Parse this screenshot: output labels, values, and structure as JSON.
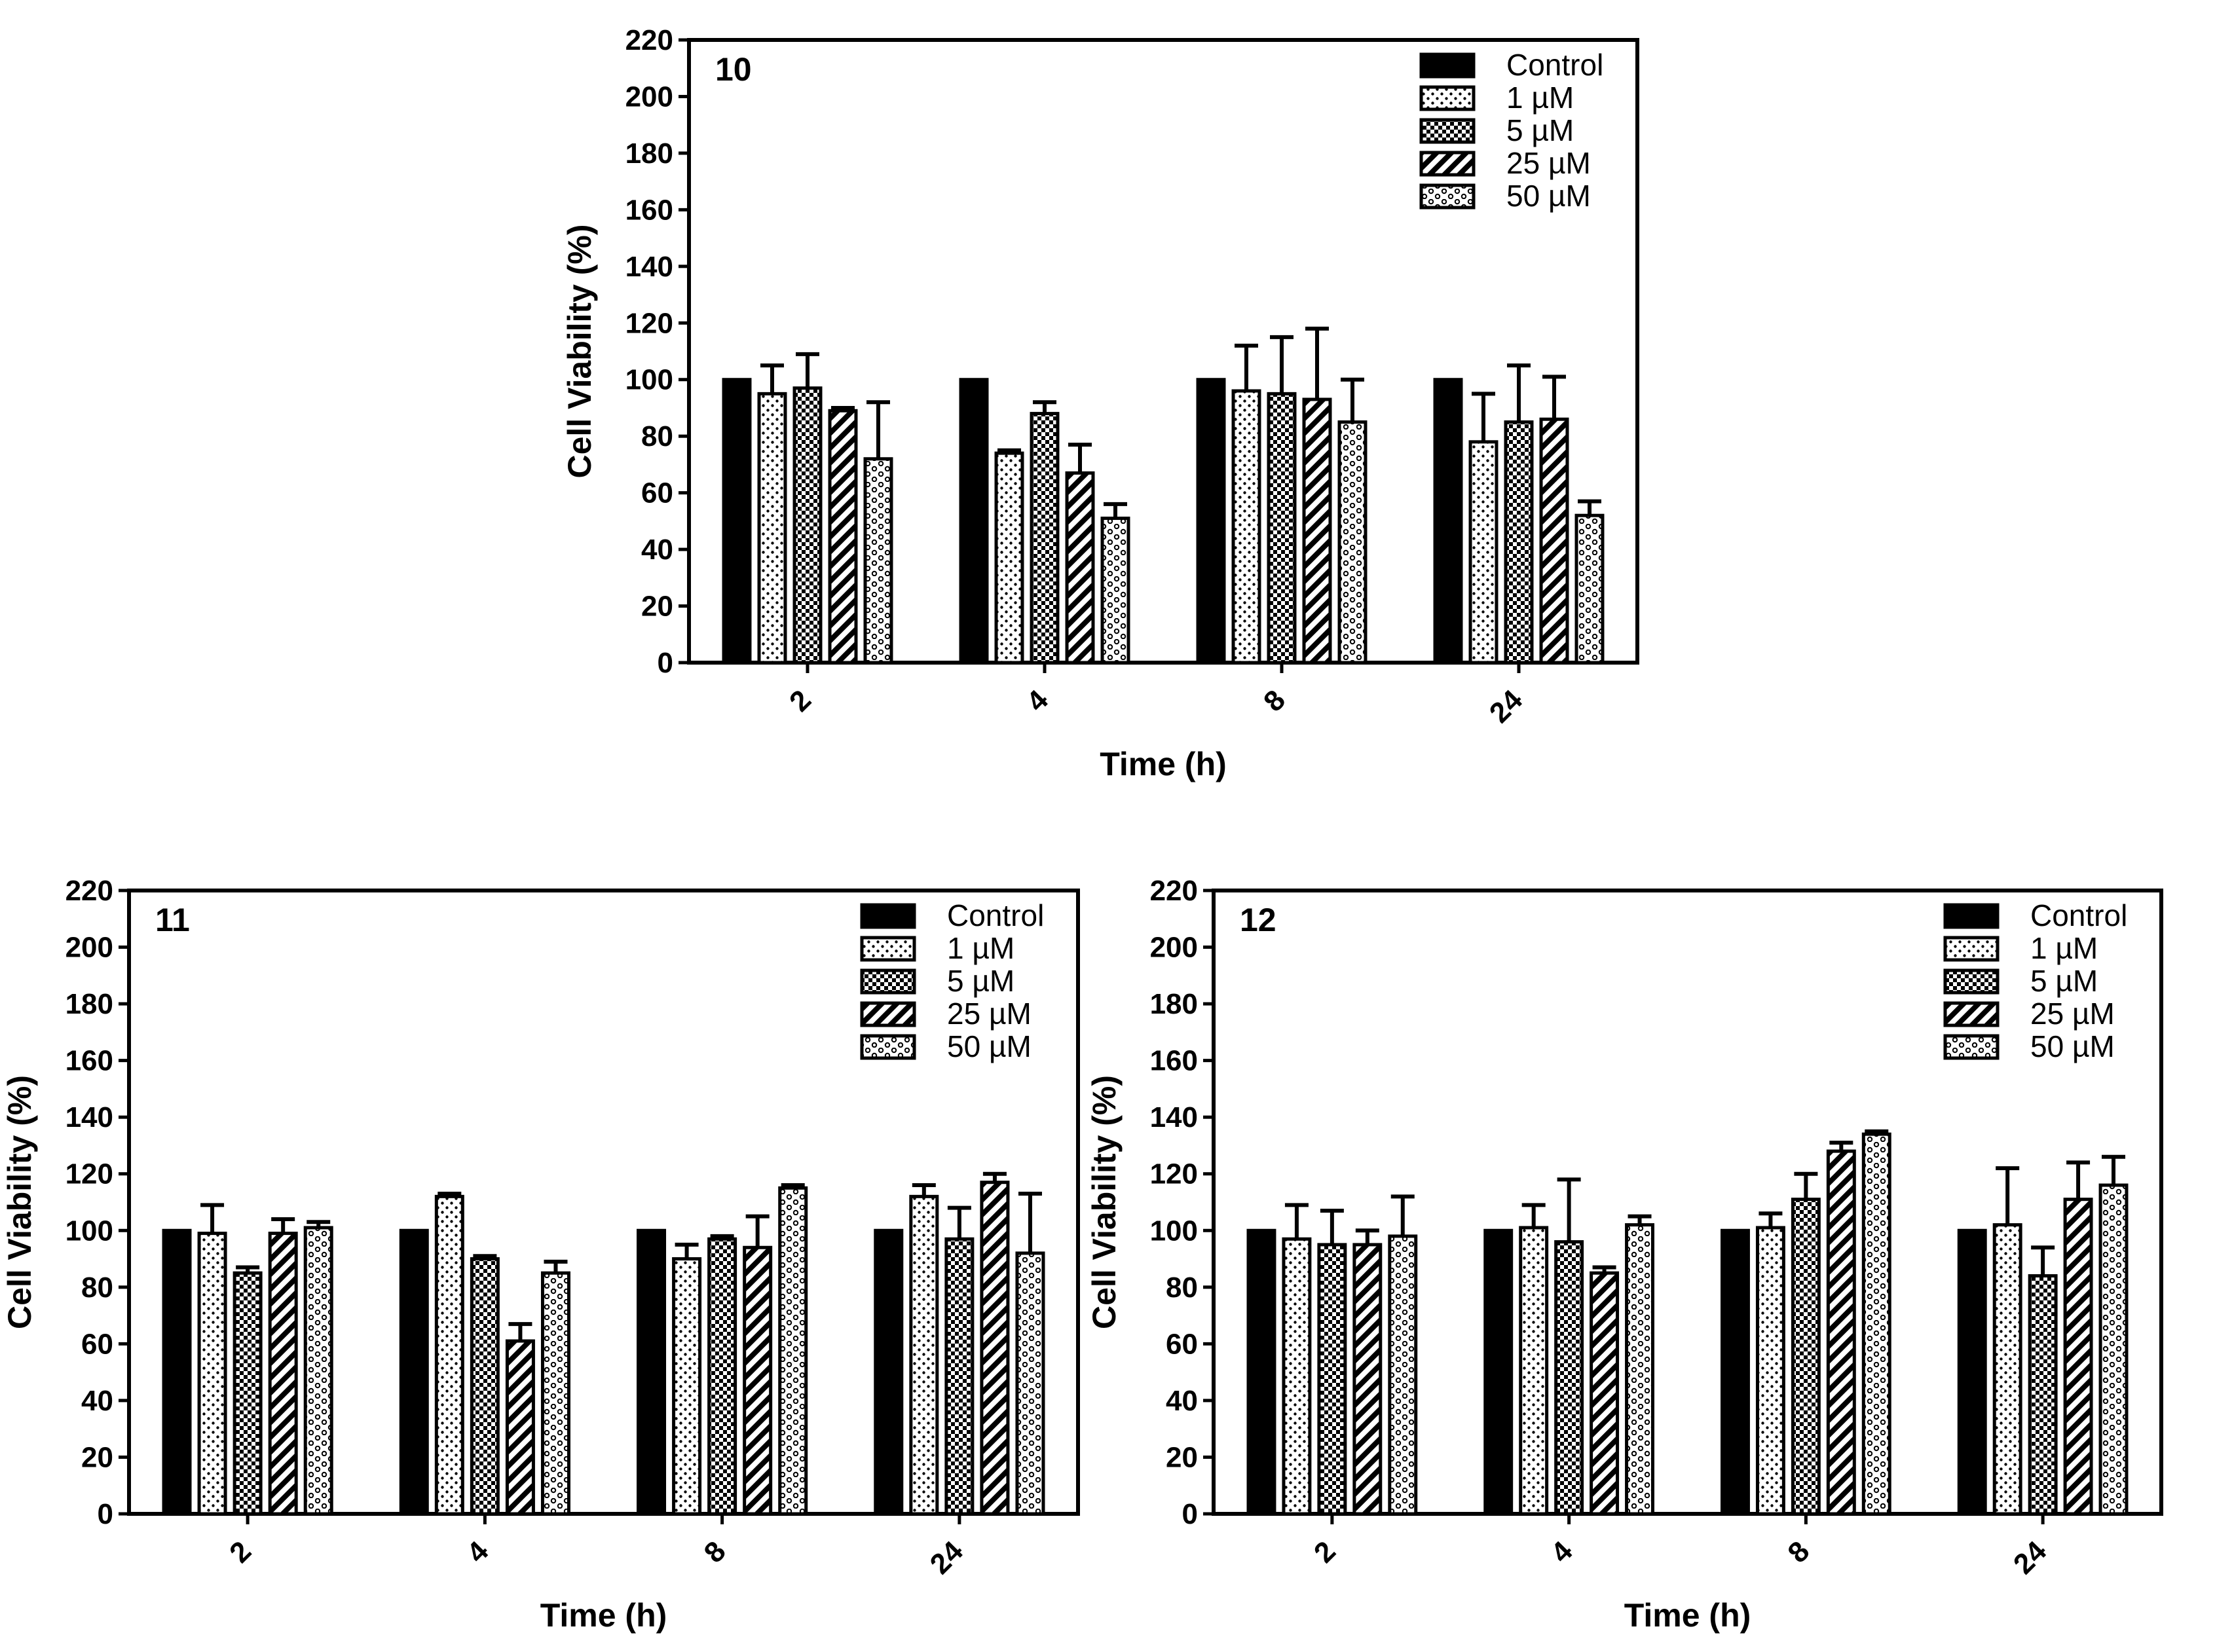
{
  "chart_data": [
    {
      "type": "bar",
      "panel_label": "10",
      "xlabel": "Time (h)",
      "ylabel": "Cell Viability (%)",
      "ylim": [
        0,
        220
      ],
      "yticks": [
        0,
        20,
        40,
        60,
        80,
        100,
        120,
        140,
        160,
        180,
        200,
        220
      ],
      "categories": [
        "2",
        "4",
        "8",
        "24"
      ],
      "legend_position": "top-right",
      "grid": false,
      "series": [
        {
          "name": "Control",
          "pattern": "solid",
          "values": [
            100,
            100,
            100,
            100
          ],
          "errors": [
            0,
            0,
            0,
            0
          ]
        },
        {
          "name": "1 µM",
          "pattern": "dots",
          "values": [
            95,
            74,
            96,
            78
          ],
          "errors": [
            10,
            1,
            16,
            17
          ]
        },
        {
          "name": "5 µM",
          "pattern": "checker",
          "values": [
            97,
            88,
            95,
            85
          ],
          "errors": [
            12,
            4,
            20,
            20
          ]
        },
        {
          "name": "25 µM",
          "pattern": "stripes",
          "values": [
            89,
            67,
            93,
            86
          ],
          "errors": [
            1,
            10,
            25,
            15
          ]
        },
        {
          "name": "50 µM",
          "pattern": "waves",
          "values": [
            72,
            51,
            85,
            52
          ],
          "errors": [
            20,
            5,
            15,
            5
          ]
        }
      ]
    },
    {
      "type": "bar",
      "panel_label": "11",
      "xlabel": "Time (h)",
      "ylabel": "Cell Viability (%)",
      "ylim": [
        0,
        220
      ],
      "yticks": [
        0,
        20,
        40,
        60,
        80,
        100,
        120,
        140,
        160,
        180,
        200,
        220
      ],
      "categories": [
        "2",
        "4",
        "8",
        "24"
      ],
      "legend_position": "top-right",
      "grid": false,
      "series": [
        {
          "name": "Control",
          "pattern": "solid",
          "values": [
            100,
            100,
            100,
            100
          ],
          "errors": [
            0,
            0,
            0,
            0
          ]
        },
        {
          "name": "1 µM",
          "pattern": "dots",
          "values": [
            99,
            112,
            90,
            112
          ],
          "errors": [
            10,
            1,
            5,
            4
          ]
        },
        {
          "name": "5 µM",
          "pattern": "checker",
          "values": [
            85,
            90,
            97,
            97
          ],
          "errors": [
            2,
            1,
            1,
            11
          ]
        },
        {
          "name": "25 µM",
          "pattern": "stripes",
          "values": [
            99,
            61,
            94,
            117
          ],
          "errors": [
            5,
            6,
            11,
            3
          ]
        },
        {
          "name": "50 µM",
          "pattern": "waves",
          "values": [
            101,
            85,
            115,
            92
          ],
          "errors": [
            2,
            4,
            1,
            21
          ]
        }
      ]
    },
    {
      "type": "bar",
      "panel_label": "12",
      "xlabel": "Time (h)",
      "ylabel": "Cell Viability (%)",
      "ylim": [
        0,
        220
      ],
      "yticks": [
        0,
        20,
        40,
        60,
        80,
        100,
        120,
        140,
        160,
        180,
        200,
        220
      ],
      "categories": [
        "2",
        "4",
        "8",
        "24"
      ],
      "legend_position": "top-right",
      "grid": false,
      "series": [
        {
          "name": "Control",
          "pattern": "solid",
          "values": [
            100,
            100,
            100,
            100
          ],
          "errors": [
            0,
            0,
            0,
            0
          ]
        },
        {
          "name": "1 µM",
          "pattern": "dots",
          "values": [
            97,
            101,
            101,
            102
          ],
          "errors": [
            12,
            8,
            5,
            20
          ]
        },
        {
          "name": "5 µM",
          "pattern": "checker",
          "values": [
            95,
            96,
            111,
            84
          ],
          "errors": [
            12,
            22,
            9,
            10
          ]
        },
        {
          "name": "25 µM",
          "pattern": "stripes",
          "values": [
            95,
            85,
            128,
            111
          ],
          "errors": [
            5,
            2,
            3,
            13
          ]
        },
        {
          "name": "50 µM",
          "pattern": "waves",
          "values": [
            98,
            102,
            134,
            116
          ],
          "errors": [
            14,
            3,
            1,
            10
          ]
        }
      ]
    }
  ]
}
